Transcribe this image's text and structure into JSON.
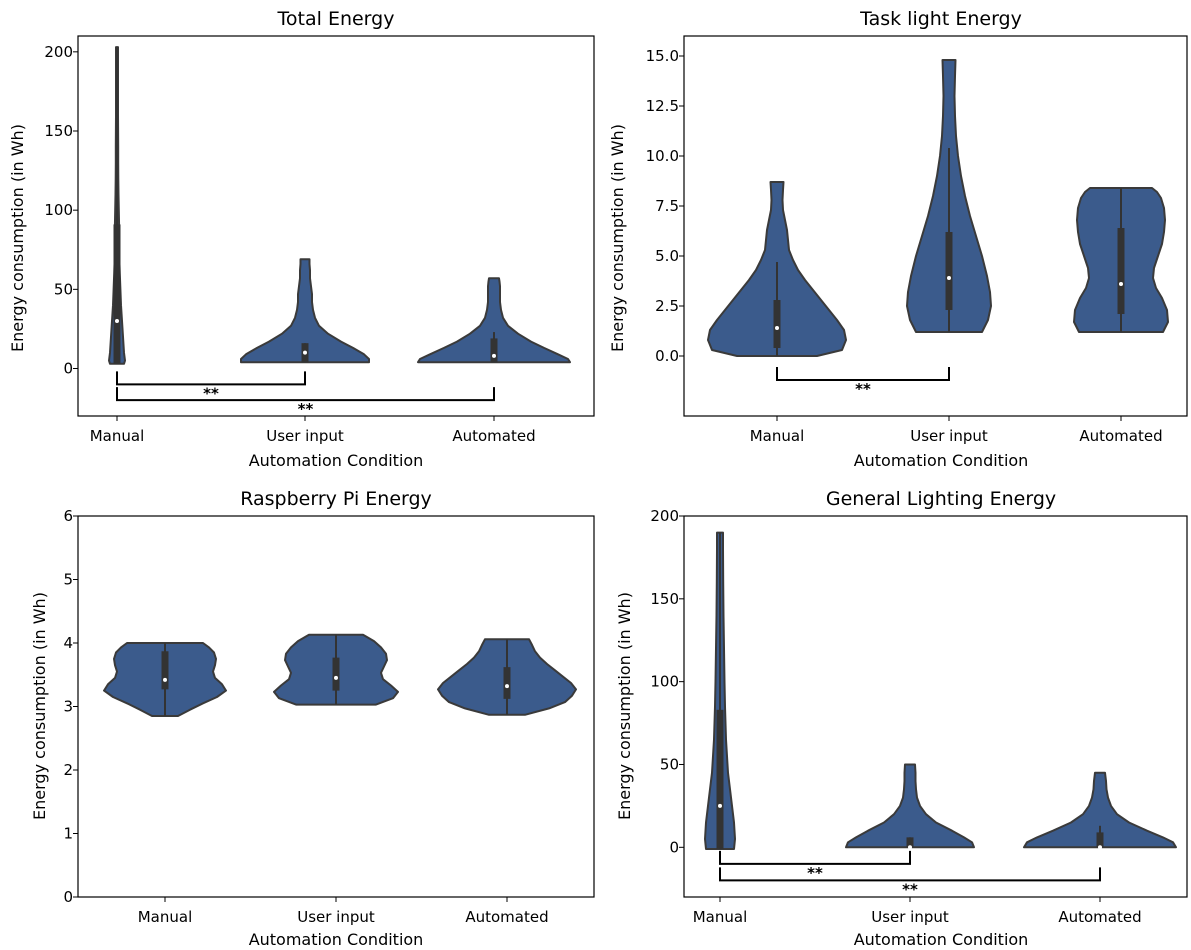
{
  "figure": {
    "fill_color": "#3b5b8c",
    "edge_color": "#3a3a3a",
    "box_color": "#333333",
    "median_color": "#ffffff"
  },
  "chart_data": [
    {
      "type": "violin",
      "title": "Total Energy",
      "xlabel": "Automation Condition",
      "ylabel": "Energy consumption (in Wh)",
      "categories": [
        "Manual",
        "User input",
        "Automated"
      ],
      "yticks": [
        "0",
        "50",
        "100",
        "150",
        "200"
      ],
      "ylim": [
        -30,
        210
      ],
      "grid": false,
      "series": [
        {
          "category": "Manual",
          "min": 3,
          "q1": 3,
          "median": 30,
          "q3": 91,
          "whisker_high": 203,
          "max": 203,
          "density": [
            [
              3,
              7
            ],
            [
              5,
              8
            ],
            [
              10,
              7
            ],
            [
              20,
              6
            ],
            [
              30,
              5
            ],
            [
              40,
              4
            ],
            [
              50,
              3.4
            ],
            [
              60,
              2.8
            ],
            [
              70,
              2.3
            ],
            [
              80,
              2.1
            ],
            [
              90,
              2.1
            ],
            [
              100,
              1.8
            ],
            [
              110,
              1.5
            ],
            [
              120,
              1.3
            ],
            [
              130,
              1.2
            ],
            [
              140,
              1.15
            ],
            [
              150,
              1.1
            ],
            [
              160,
              1.05
            ],
            [
              170,
              1.0
            ],
            [
              180,
              1.0
            ],
            [
              190,
              1.0
            ],
            [
              203,
              1.0
            ]
          ]
        },
        {
          "category": "User input",
          "min": 4,
          "q1": 4,
          "median": 10,
          "q3": 16,
          "whisker_high": 16,
          "max": 69,
          "density": [
            [
              4,
              64
            ],
            [
              6,
              64
            ],
            [
              9,
              59
            ],
            [
              13,
              48
            ],
            [
              17,
              36
            ],
            [
              22,
              23
            ],
            [
              27,
              14
            ],
            [
              32,
              10
            ],
            [
              37,
              8
            ],
            [
              42,
              7
            ],
            [
              47,
              7
            ],
            [
              52,
              6
            ],
            [
              57,
              5
            ],
            [
              62,
              5
            ],
            [
              66,
              4.5
            ],
            [
              69,
              4.5
            ]
          ]
        },
        {
          "category": "Automated",
          "min": 4,
          "q1": 4,
          "median": 8,
          "q3": 19,
          "whisker_high": 23,
          "max": 57,
          "density": [
            [
              4,
              76
            ],
            [
              6,
              74
            ],
            [
              9,
              64
            ],
            [
              13,
              50
            ],
            [
              17,
              37
            ],
            [
              22,
              24
            ],
            [
              27,
              14
            ],
            [
              32,
              9
            ],
            [
              37,
              7
            ],
            [
              42,
              6
            ],
            [
              47,
              6
            ],
            [
              52,
              6
            ],
            [
              55,
              5.5
            ],
            [
              57,
              5
            ]
          ]
        }
      ],
      "significance": [
        {
          "from": "Manual",
          "to": "User input",
          "y": -10,
          "label": "**"
        },
        {
          "from": "Manual",
          "to": "Automated",
          "y": -20,
          "label": "**"
        }
      ]
    },
    {
      "type": "violin",
      "title": "Task light Energy",
      "xlabel": "Automation Condition",
      "ylabel": "Energy consumption (in Wh)",
      "categories": [
        "Manual",
        "User input",
        "Automated"
      ],
      "yticks": [
        "0.0",
        "2.5",
        "5.0",
        "7.5",
        "10.0",
        "12.5",
        "15.0"
      ],
      "ylim": [
        -3,
        16
      ],
      "grid": false,
      "series": [
        {
          "category": "Manual",
          "min": 0,
          "q1": 0.4,
          "median": 1.4,
          "q3": 2.8,
          "whisker_high": 4.7,
          "max": 8.7,
          "density": [
            [
              0,
              40
            ],
            [
              0.3,
              65
            ],
            [
              0.8,
              69
            ],
            [
              1.3,
              67
            ],
            [
              1.8,
              60
            ],
            [
              2.3,
              52
            ],
            [
              2.8,
              44
            ],
            [
              3.3,
              36
            ],
            [
              3.8,
              28
            ],
            [
              4.3,
              21
            ],
            [
              4.8,
              16
            ],
            [
              5.3,
              12
            ],
            [
              5.8,
              11
            ],
            [
              6.3,
              10
            ],
            [
              6.8,
              8
            ],
            [
              7.3,
              6
            ],
            [
              7.8,
              5.5
            ],
            [
              8.3,
              6
            ],
            [
              8.7,
              6.5
            ]
          ]
        },
        {
          "category": "User input",
          "min": 1.2,
          "q1": 2.3,
          "median": 3.9,
          "q3": 6.2,
          "whisker_high": 10.4,
          "max": 14.8,
          "density": [
            [
              1.2,
              33
            ],
            [
              1.8,
              39
            ],
            [
              2.5,
              42
            ],
            [
              3.2,
              41
            ],
            [
              4.0,
              38
            ],
            [
              5.0,
              33
            ],
            [
              6.0,
              27
            ],
            [
              7.0,
              21
            ],
            [
              8.0,
              16
            ],
            [
              9.0,
              12
            ],
            [
              10.0,
              9
            ],
            [
              11.0,
              7
            ],
            [
              12.0,
              6
            ],
            [
              13.0,
              5.5
            ],
            [
              14.0,
              6
            ],
            [
              14.8,
              6.5
            ]
          ]
        },
        {
          "category": "Automated",
          "min": 1.2,
          "q1": 2.1,
          "median": 3.6,
          "q3": 6.4,
          "whisker_high": 8.4,
          "max": 8.4,
          "density": [
            [
              1.2,
              42
            ],
            [
              1.7,
              47
            ],
            [
              2.3,
              46
            ],
            [
              2.9,
              41
            ],
            [
              3.4,
              35
            ],
            [
              3.9,
              32
            ],
            [
              4.4,
              33
            ],
            [
              5.0,
              37
            ],
            [
              5.6,
              41
            ],
            [
              6.2,
              43
            ],
            [
              6.8,
              44
            ],
            [
              7.4,
              43
            ],
            [
              7.9,
              40
            ],
            [
              8.2,
              36
            ],
            [
              8.4,
              31
            ]
          ]
        }
      ],
      "significance": [
        {
          "from": "Manual",
          "to": "User input",
          "y": -1.2,
          "label": "**"
        }
      ]
    },
    {
      "type": "violin",
      "title": "Raspberry Pi Energy",
      "xlabel": "Automation Condition",
      "ylabel": "Energy consumption (in Wh)",
      "categories": [
        "Manual",
        "User input",
        "Automated"
      ],
      "yticks": [
        "0",
        "1",
        "2",
        "3",
        "4",
        "5",
        "6"
      ],
      "ylim": [
        0,
        6
      ],
      "grid": false,
      "series": [
        {
          "category": "Manual",
          "min": 2.85,
          "q1": 3.27,
          "median": 3.42,
          "q3": 3.87,
          "whisker_high": 4.0,
          "max": 4.0,
          "density": [
            [
              2.85,
              13
            ],
            [
              2.95,
              25
            ],
            [
              3.05,
              38
            ],
            [
              3.15,
              52
            ],
            [
              3.25,
              61
            ],
            [
              3.35,
              57
            ],
            [
              3.45,
              50
            ],
            [
              3.55,
              48
            ],
            [
              3.65,
              50
            ],
            [
              3.75,
              51
            ],
            [
              3.85,
              49
            ],
            [
              3.93,
              44
            ],
            [
              4.0,
              38
            ]
          ]
        },
        {
          "category": "User input",
          "min": 3.03,
          "q1": 3.25,
          "median": 3.45,
          "q3": 3.77,
          "whisker_high": 4.13,
          "max": 4.13,
          "density": [
            [
              3.03,
              40
            ],
            [
              3.13,
              57
            ],
            [
              3.23,
              62
            ],
            [
              3.33,
              55
            ],
            [
              3.43,
              47
            ],
            [
              3.53,
              45
            ],
            [
              3.63,
              48
            ],
            [
              3.73,
              51
            ],
            [
              3.83,
              50
            ],
            [
              3.93,
              45
            ],
            [
              4.03,
              38
            ],
            [
              4.13,
              27
            ]
          ]
        },
        {
          "category": "Automated",
          "min": 2.87,
          "q1": 3.12,
          "median": 3.32,
          "q3": 3.62,
          "whisker_high": 4.06,
          "max": 4.06,
          "density": [
            [
              2.87,
              18
            ],
            [
              2.97,
              42
            ],
            [
              3.07,
              58
            ],
            [
              3.17,
              65
            ],
            [
              3.27,
              69
            ],
            [
              3.37,
              64
            ],
            [
              3.47,
              56
            ],
            [
              3.57,
              48
            ],
            [
              3.67,
              40
            ],
            [
              3.77,
              33
            ],
            [
              3.87,
              28
            ],
            [
              3.97,
              25
            ],
            [
              4.06,
              22
            ]
          ]
        }
      ],
      "significance": []
    },
    {
      "type": "violin",
      "title": "General Lighting Energy",
      "xlabel": "Automation Condition",
      "ylabel": "Energy consumption (in Wh)",
      "categories": [
        "Manual",
        "User input",
        "Automated"
      ],
      "yticks": [
        "0",
        "50",
        "100",
        "150",
        "200"
      ],
      "ylim": [
        -30,
        200
      ],
      "grid": false,
      "series": [
        {
          "category": "Manual",
          "min": -1,
          "q1": -1,
          "median": 25,
          "q3": 83,
          "whisker_high": 190,
          "max": 190,
          "density": [
            [
              -1,
              14
            ],
            [
              5,
              15
            ],
            [
              15,
              14
            ],
            [
              25,
              12
            ],
            [
              35,
              10
            ],
            [
              45,
              8
            ],
            [
              55,
              7
            ],
            [
              65,
              6
            ],
            [
              75,
              5.5
            ],
            [
              85,
              5
            ],
            [
              100,
              4.5
            ],
            [
              120,
              4
            ],
            [
              140,
              3.5
            ],
            [
              160,
              3.2
            ],
            [
              180,
              3
            ],
            [
              190,
              3
            ]
          ]
        },
        {
          "category": "User input",
          "min": 0,
          "q1": 0,
          "median": 0,
          "q3": 6,
          "whisker_high": 6,
          "max": 50,
          "density": [
            [
              0,
              64
            ],
            [
              3,
              62
            ],
            [
              6,
              54
            ],
            [
              10,
              42
            ],
            [
              15,
              26
            ],
            [
              20,
              16
            ],
            [
              25,
              10
            ],
            [
              30,
              7
            ],
            [
              35,
              6
            ],
            [
              40,
              5.5
            ],
            [
              45,
              5.5
            ],
            [
              50,
              5
            ]
          ]
        },
        {
          "category": "Automated",
          "min": 0,
          "q1": 0,
          "median": 0,
          "q3": 9,
          "whisker_high": 13,
          "max": 45,
          "density": [
            [
              0,
              76
            ],
            [
              3,
              73
            ],
            [
              6,
              63
            ],
            [
              10,
              47
            ],
            [
              15,
              29
            ],
            [
              20,
              17
            ],
            [
              25,
              11
            ],
            [
              30,
              8
            ],
            [
              35,
              6.5
            ],
            [
              40,
              6
            ],
            [
              45,
              5
            ]
          ]
        }
      ],
      "significance": [
        {
          "from": "Manual",
          "to": "User input",
          "y": -10,
          "label": "**"
        },
        {
          "from": "Manual",
          "to": "Automated",
          "y": -20,
          "label": "**"
        }
      ]
    }
  ]
}
